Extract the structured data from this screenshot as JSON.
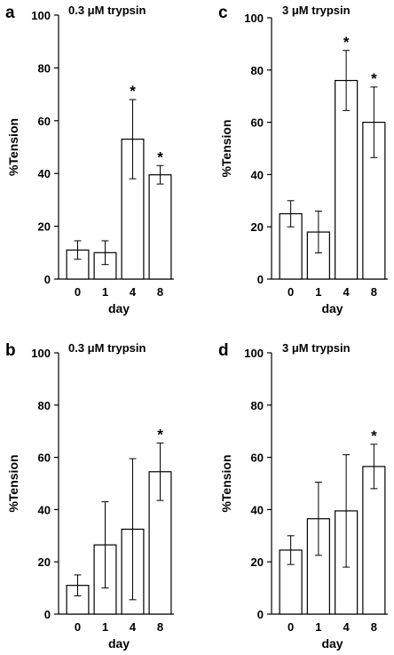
{
  "chart_data": [
    {
      "panel": "a",
      "type": "bar",
      "title": "0.3 μM trypsin",
      "categories": [
        "0",
        "1",
        "4",
        "8"
      ],
      "values": [
        11,
        10,
        53,
        39.5
      ],
      "errors": [
        3.5,
        4.5,
        15,
        3.5
      ],
      "significance": [
        "",
        "",
        "*",
        "*"
      ],
      "xlabel": "day",
      "ylabel": "%Tension",
      "ylim": [
        0,
        100
      ],
      "yticks": [
        0,
        20,
        40,
        60,
        80,
        100
      ],
      "grid": false,
      "legend": "none"
    },
    {
      "panel": "c",
      "type": "bar",
      "title": "3 μM trypsin",
      "categories": [
        "0",
        "1",
        "4",
        "8"
      ],
      "values": [
        25,
        18,
        76,
        60
      ],
      "errors": [
        5,
        8,
        11.5,
        13.5
      ],
      "significance": [
        "",
        "",
        "*",
        "*"
      ],
      "xlabel": "day",
      "ylabel": "%Tension",
      "ylim": [
        0,
        100
      ],
      "yticks": [
        0,
        20,
        40,
        60,
        80,
        100
      ],
      "grid": false,
      "legend": "none"
    },
    {
      "panel": "b",
      "type": "bar",
      "title": "0.3 μM trypsin",
      "categories": [
        "0",
        "1",
        "4",
        "8"
      ],
      "values": [
        11,
        26.5,
        32.5,
        54.5
      ],
      "errors": [
        4,
        16.5,
        27,
        11
      ],
      "significance": [
        "",
        "",
        "",
        "*"
      ],
      "xlabel": "day",
      "ylabel": "%Tension",
      "ylim": [
        0,
        100
      ],
      "yticks": [
        0,
        20,
        40,
        60,
        80,
        100
      ],
      "grid": false,
      "legend": "none"
    },
    {
      "panel": "d",
      "type": "bar",
      "title": "3 μM trypsin",
      "categories": [
        "0",
        "1",
        "4",
        "8"
      ],
      "values": [
        24.5,
        36.5,
        39.5,
        56.5
      ],
      "errors": [
        5.5,
        14,
        21.5,
        8.5
      ],
      "significance": [
        "",
        "",
        "",
        "*"
      ],
      "xlabel": "day",
      "ylabel": "%Tension",
      "ylim": [
        0,
        100
      ],
      "yticks": [
        0,
        20,
        40,
        60,
        80,
        100
      ],
      "grid": false,
      "legend": "none"
    }
  ]
}
